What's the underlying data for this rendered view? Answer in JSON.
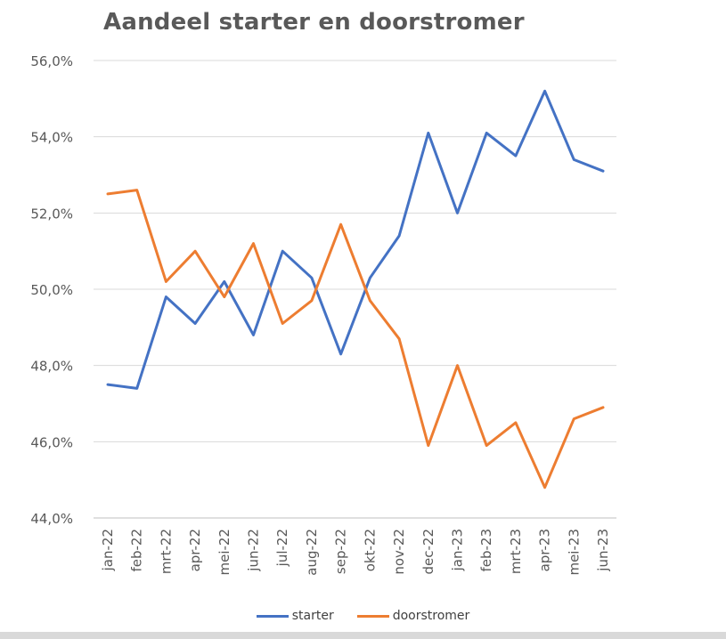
{
  "chart_data": {
    "type": "line",
    "title": "Aandeel starter en doorstromer",
    "categories": [
      "jan-22",
      "feb-22",
      "mrt-22",
      "apr-22",
      "mei-22",
      "jun-22",
      "jul-22",
      "aug-22",
      "sep-22",
      "okt-22",
      "nov-22",
      "dec-22",
      "jan-23",
      "feb-23",
      "mrt-23",
      "apr-23",
      "mei-23",
      "jun-23"
    ],
    "series": [
      {
        "name": "starter",
        "color": "#4472C4",
        "values": [
          47.5,
          47.4,
          49.8,
          49.1,
          50.2,
          48.8,
          51.0,
          50.3,
          48.3,
          50.3,
          51.4,
          54.1,
          52.0,
          54.1,
          53.5,
          55.2,
          53.4,
          53.1
        ]
      },
      {
        "name": "doorstromer",
        "color": "#ED7D31",
        "values": [
          52.5,
          52.6,
          50.2,
          51.0,
          49.8,
          51.2,
          49.1,
          49.7,
          51.7,
          49.7,
          48.7,
          45.9,
          48.0,
          45.9,
          46.5,
          44.8,
          46.6,
          46.9
        ]
      }
    ],
    "ylim": [
      44.0,
      56.0
    ],
    "yticks": [
      "44,0%",
      "46,0%",
      "48,0%",
      "50,0%",
      "52,0%",
      "54,0%",
      "56,0%"
    ],
    "ytick_values": [
      44,
      46,
      48,
      50,
      52,
      54,
      56
    ],
    "grid": true,
    "legend": "bottom"
  }
}
